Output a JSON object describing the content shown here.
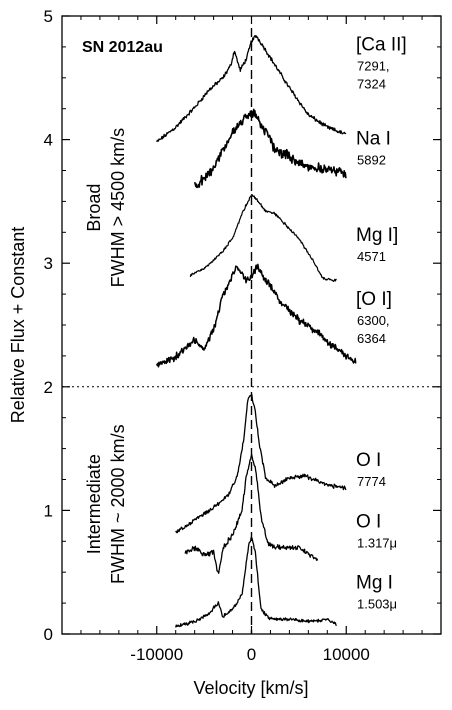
{
  "chart_data": {
    "type": "line",
    "title": "SN 2012au",
    "xlabel": "Velocity [km/s]",
    "ylabel": "Relative Flux + Constant",
    "xlim": [
      -20000,
      20000
    ],
    "ylim": [
      0,
      5
    ],
    "xticks": [
      -10000,
      0,
      10000
    ],
    "xtick_labels": [
      "-10000",
      "0",
      "10000"
    ],
    "yticks": [
      0,
      1,
      2,
      3,
      4,
      5
    ],
    "ytick_labels": [
      "0",
      "1",
      "2",
      "3",
      "4",
      "5"
    ],
    "divider_y": 2,
    "zero_line_x": 0,
    "grid": false,
    "groups": [
      {
        "line1": "Broad",
        "line2": "FWHM > 4500 km/s",
        "y_center": 3.45
      },
      {
        "line1": "Intermediate",
        "line2": "FWHM ~ 2000 km/s",
        "y_center": 1.05
      }
    ],
    "series": [
      {
        "name": "[Ca II]",
        "sub": [
          "7291,",
          "7324"
        ],
        "noise": 0.012,
        "width": 1.3,
        "label_y": 4.72,
        "x": [
          -10000,
          -8000,
          -6000,
          -4500,
          -3000,
          -2200,
          -1800,
          -1200,
          -500,
          0,
          500,
          1200,
          2500,
          4000,
          6000,
          8000,
          10000
        ],
        "y": [
          3.98,
          4.1,
          4.26,
          4.4,
          4.5,
          4.6,
          4.72,
          4.56,
          4.66,
          4.8,
          4.84,
          4.76,
          4.6,
          4.42,
          4.2,
          4.1,
          4.04
        ]
      },
      {
        "name": "Na I",
        "sub": [
          "5892"
        ],
        "noise": 0.03,
        "width": 1.6,
        "label_y": 3.96,
        "x": [
          -6000,
          -5000,
          -4000,
          -3000,
          -2000,
          -1000,
          0,
          500,
          1500,
          2500,
          4000,
          6000,
          8000,
          10000
        ],
        "y": [
          3.62,
          3.68,
          3.78,
          3.92,
          4.05,
          4.15,
          4.22,
          4.2,
          4.06,
          3.92,
          3.86,
          3.78,
          3.76,
          3.72
        ]
      },
      {
        "name": "Mg I]",
        "sub": [
          "4571"
        ],
        "noise": 0.008,
        "width": 1.2,
        "label_y": 3.18,
        "x": [
          -6500,
          -5000,
          -4000,
          -3000,
          -2000,
          -1000,
          0,
          700,
          1500,
          2500,
          3500,
          5000,
          6500,
          7500,
          9000
        ],
        "y": [
          2.9,
          2.96,
          3.02,
          3.1,
          3.2,
          3.4,
          3.56,
          3.5,
          3.42,
          3.4,
          3.32,
          3.2,
          3.02,
          2.88,
          2.86
        ]
      },
      {
        "name": "[O I]",
        "sub": [
          "6300,",
          "6364"
        ],
        "noise": 0.022,
        "width": 1.5,
        "label_y": 2.66,
        "x": [
          -10000,
          -8000,
          -6000,
          -5000,
          -4000,
          -3000,
          -1500,
          -600,
          0,
          600,
          1500,
          3000,
          5000,
          7000,
          9000,
          11000
        ],
        "y": [
          2.18,
          2.24,
          2.38,
          2.3,
          2.46,
          2.74,
          2.98,
          2.86,
          2.88,
          2.98,
          2.86,
          2.7,
          2.54,
          2.44,
          2.3,
          2.2
        ]
      },
      {
        "name": "O I",
        "sub": [
          "7774"
        ],
        "noise": 0.012,
        "width": 1.3,
        "label_y": 1.36,
        "x": [
          -8000,
          -6000,
          -4000,
          -2500,
          -1500,
          -800,
          -400,
          0,
          400,
          800,
          1500,
          2500,
          4000,
          5500,
          7000,
          8500,
          10000
        ],
        "y": [
          0.82,
          0.92,
          1.02,
          1.12,
          1.28,
          1.58,
          1.9,
          1.94,
          1.8,
          1.55,
          1.26,
          1.2,
          1.26,
          1.28,
          1.24,
          1.2,
          1.18
        ]
      },
      {
        "name": "O I",
        "sub": [
          "1.317μ"
        ],
        "noise": 0.015,
        "width": 1.3,
        "label_y": 0.86,
        "x": [
          -7000,
          -6000,
          -5000,
          -4000,
          -3500,
          -3000,
          -2000,
          -1000,
          -500,
          0,
          500,
          1000,
          1800,
          3000,
          5000,
          7000
        ],
        "y": [
          0.66,
          0.7,
          0.64,
          0.66,
          0.48,
          0.7,
          0.8,
          1.0,
          1.3,
          1.45,
          1.3,
          0.95,
          0.72,
          0.7,
          0.7,
          0.6
        ]
      },
      {
        "name": "Mg I",
        "sub": [
          "1.503μ"
        ],
        "noise": 0.01,
        "width": 1.3,
        "label_y": 0.37,
        "x": [
          -8000,
          -6000,
          -4500,
          -3500,
          -3000,
          -2000,
          -1000,
          -300,
          0,
          400,
          1000,
          2000,
          4000,
          6000,
          8000,
          9000
        ],
        "y": [
          0.06,
          0.1,
          0.16,
          0.26,
          0.14,
          0.2,
          0.32,
          0.72,
          0.78,
          0.66,
          0.2,
          0.12,
          0.12,
          0.1,
          0.12,
          0.08
        ]
      }
    ]
  }
}
